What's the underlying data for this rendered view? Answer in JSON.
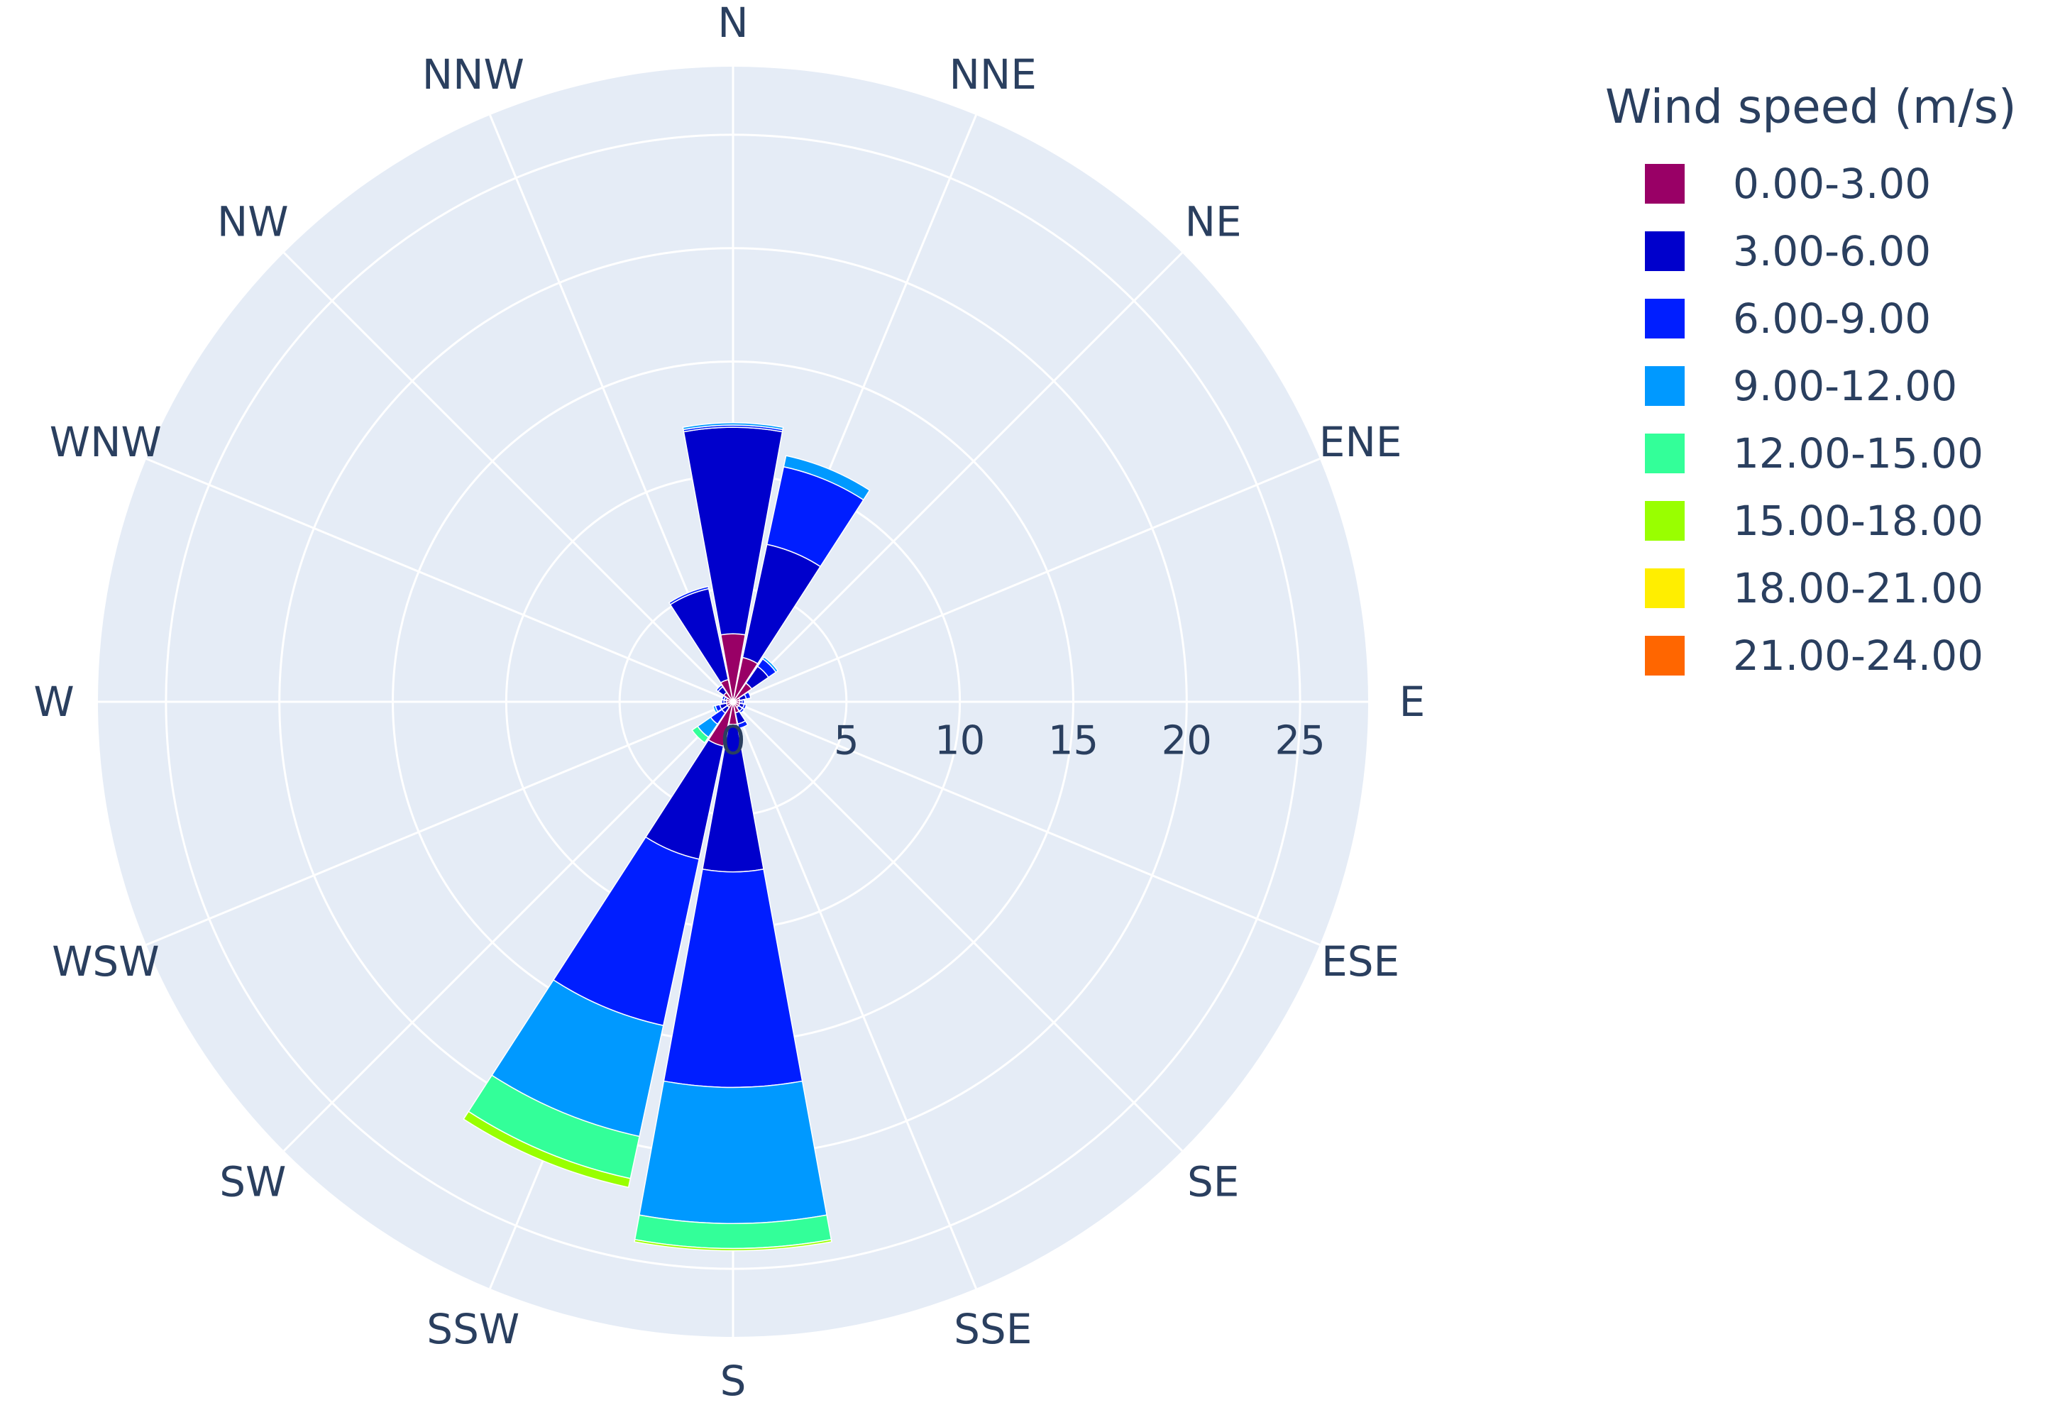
{
  "chart_data": {
    "type": "barpolar",
    "title": "",
    "legend_title": "Wind speed (m/s)",
    "legend_position": "top-right",
    "directions": [
      "N",
      "NNE",
      "NE",
      "ENE",
      "E",
      "ESE",
      "SE",
      "SSE",
      "S",
      "SSW",
      "SW",
      "WSW",
      "W",
      "WNW",
      "NW",
      "NNW"
    ],
    "radial_ticks": [
      "0",
      "5",
      "10",
      "15",
      "20",
      "25"
    ],
    "radial_range": [
      0,
      28
    ],
    "grid": true,
    "series": [
      {
        "name": "0.00-3.00",
        "color": "#990066",
        "values": [
          3.0,
          2.0,
          1.0,
          0.3,
          0.3,
          0.3,
          0.3,
          0.5,
          1.0,
          2.0,
          0.3,
          0.3,
          0.3,
          0.3,
          0.5,
          1.0
        ]
      },
      {
        "name": "3.00-6.00",
        "color": "#0000cc",
        "values": [
          9.1,
          5.1,
          0.9,
          0.3,
          0.1,
          0.2,
          0.2,
          0.5,
          6.5,
          5.1,
          0.3,
          0.3,
          0.1,
          0.1,
          0.3,
          4.1
        ]
      },
      {
        "name": "6.00-9.00",
        "color": "#001eff",
        "values": [
          0.1,
          3.5,
          0.4,
          0.2,
          0.1,
          0.1,
          0.1,
          0.2,
          9.5,
          7.5,
          0.6,
          0.2,
          0.1,
          0.1,
          0.1,
          0.1
        ]
      },
      {
        "name": "9.00-12.00",
        "color": "#0099ff",
        "values": [
          0.1,
          0.5,
          0.1,
          0.0,
          0.0,
          0.0,
          0.0,
          0.0,
          6.0,
          5.0,
          0.7,
          0.1,
          0.0,
          0.0,
          0.0,
          0.0
        ]
      },
      {
        "name": "12.00-15.00",
        "color": "#33ff99",
        "values": [
          0.0,
          0.0,
          0.0,
          0.0,
          0.0,
          0.0,
          0.0,
          0.0,
          1.1,
          1.9,
          0.3,
          0.0,
          0.0,
          0.0,
          0.0,
          0.0
        ]
      },
      {
        "name": "15.00-18.00",
        "color": "#99ff00",
        "values": [
          0.0,
          0.0,
          0.0,
          0.0,
          0.0,
          0.0,
          0.0,
          0.0,
          0.1,
          0.4,
          0.0,
          0.0,
          0.0,
          0.0,
          0.0,
          0.0
        ]
      },
      {
        "name": "18.00-21.00",
        "color": "#ffee00",
        "values": [
          0.0,
          0.0,
          0.0,
          0.0,
          0.0,
          0.0,
          0.0,
          0.0,
          0.0,
          0.0,
          0.0,
          0.0,
          0.0,
          0.0,
          0.0,
          0.0
        ]
      },
      {
        "name": "21.00-24.00",
        "color": "#ff6600",
        "values": [
          0.0,
          0.0,
          0.0,
          0.0,
          0.0,
          0.0,
          0.0,
          0.0,
          0.0,
          0.0,
          0.0,
          0.0,
          0.0,
          0.0,
          0.0,
          0.0
        ]
      }
    ]
  }
}
